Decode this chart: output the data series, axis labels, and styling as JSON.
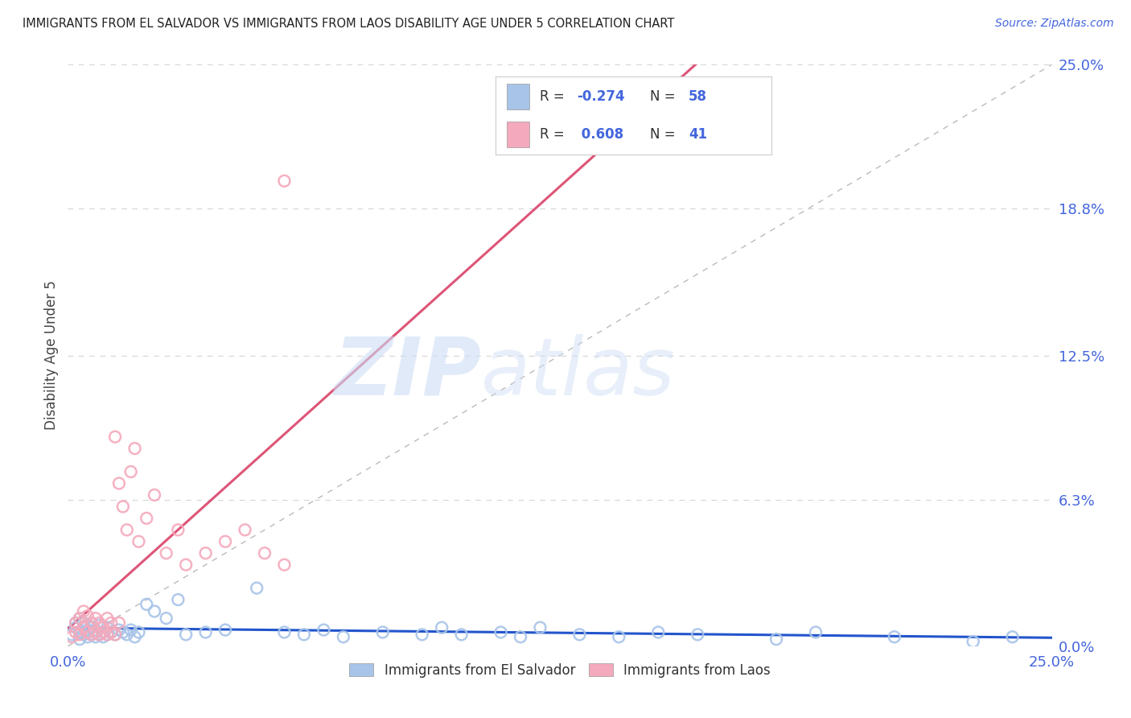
{
  "title": "IMMIGRANTS FROM EL SALVADOR VS IMMIGRANTS FROM LAOS DISABILITY AGE UNDER 5 CORRELATION CHART",
  "source": "Source: ZipAtlas.com",
  "ylabel": "Disability Age Under 5",
  "el_salvador_R": -0.274,
  "el_salvador_N": 58,
  "laos_R": 0.608,
  "laos_N": 41,
  "xlim": [
    0.0,
    0.25
  ],
  "ylim": [
    0.0,
    0.25
  ],
  "ytick_values": [
    0.0,
    0.063,
    0.125,
    0.188,
    0.25
  ],
  "ytick_labels": [
    "0.0%",
    "6.3%",
    "12.5%",
    "18.8%",
    "25.0%"
  ],
  "xtick_values": [
    0.0,
    0.25
  ],
  "xtick_labels": [
    "0.0%",
    "25.0%"
  ],
  "el_salvador_color": "#a8c4e8",
  "laos_color": "#f4aabc",
  "el_salvador_line_color": "#2255cc",
  "laos_line_color": "#dd5577",
  "diagonal_color": "#bbbbbb",
  "background_color": "#ffffff",
  "watermark_zip": "ZIP",
  "watermark_atlas": "atlas",
  "tick_color": "#4466dd",
  "es_x": [
    0.001,
    0.002,
    0.002,
    0.003,
    0.003,
    0.003,
    0.004,
    0.004,
    0.004,
    0.005,
    0.005,
    0.005,
    0.006,
    0.006,
    0.007,
    0.007,
    0.008,
    0.008,
    0.009,
    0.009,
    0.01,
    0.01,
    0.011,
    0.012,
    0.013,
    0.014,
    0.015,
    0.016,
    0.017,
    0.018,
    0.02,
    0.022,
    0.025,
    0.028,
    0.03,
    0.035,
    0.04,
    0.048,
    0.055,
    0.06,
    0.065,
    0.07,
    0.08,
    0.09,
    0.095,
    0.1,
    0.11,
    0.115,
    0.12,
    0.13,
    0.14,
    0.15,
    0.16,
    0.18,
    0.19,
    0.21,
    0.23,
    0.24
  ],
  "es_y": [
    0.005,
    0.008,
    0.01,
    0.003,
    0.006,
    0.012,
    0.005,
    0.008,
    0.01,
    0.004,
    0.007,
    0.009,
    0.005,
    0.008,
    0.004,
    0.007,
    0.005,
    0.009,
    0.004,
    0.006,
    0.005,
    0.008,
    0.006,
    0.005,
    0.007,
    0.006,
    0.005,
    0.007,
    0.004,
    0.006,
    0.018,
    0.015,
    0.012,
    0.02,
    0.005,
    0.006,
    0.007,
    0.025,
    0.006,
    0.005,
    0.007,
    0.004,
    0.006,
    0.005,
    0.008,
    0.005,
    0.006,
    0.004,
    0.008,
    0.005,
    0.004,
    0.006,
    0.005,
    0.003,
    0.006,
    0.004,
    0.002,
    0.004
  ],
  "laos_x": [
    0.001,
    0.002,
    0.002,
    0.003,
    0.003,
    0.004,
    0.004,
    0.005,
    0.005,
    0.006,
    0.006,
    0.007,
    0.007,
    0.008,
    0.008,
    0.009,
    0.009,
    0.01,
    0.01,
    0.011,
    0.011,
    0.012,
    0.012,
    0.013,
    0.013,
    0.014,
    0.015,
    0.016,
    0.017,
    0.018,
    0.02,
    0.022,
    0.025,
    0.028,
    0.03,
    0.035,
    0.04,
    0.045,
    0.05,
    0.055,
    0.055
  ],
  "laos_y": [
    0.004,
    0.006,
    0.01,
    0.005,
    0.012,
    0.008,
    0.015,
    0.006,
    0.013,
    0.005,
    0.01,
    0.006,
    0.012,
    0.005,
    0.01,
    0.006,
    0.008,
    0.005,
    0.012,
    0.006,
    0.01,
    0.005,
    0.09,
    0.01,
    0.07,
    0.06,
    0.05,
    0.075,
    0.085,
    0.045,
    0.055,
    0.065,
    0.04,
    0.05,
    0.035,
    0.04,
    0.045,
    0.05,
    0.04,
    0.035,
    0.2
  ],
  "es_line_x": [
    0.0,
    0.25
  ],
  "es_line_y": [
    0.008,
    0.003
  ],
  "laos_line_x": [
    0.0,
    0.13
  ],
  "laos_line_y": [
    0.0,
    0.175
  ]
}
